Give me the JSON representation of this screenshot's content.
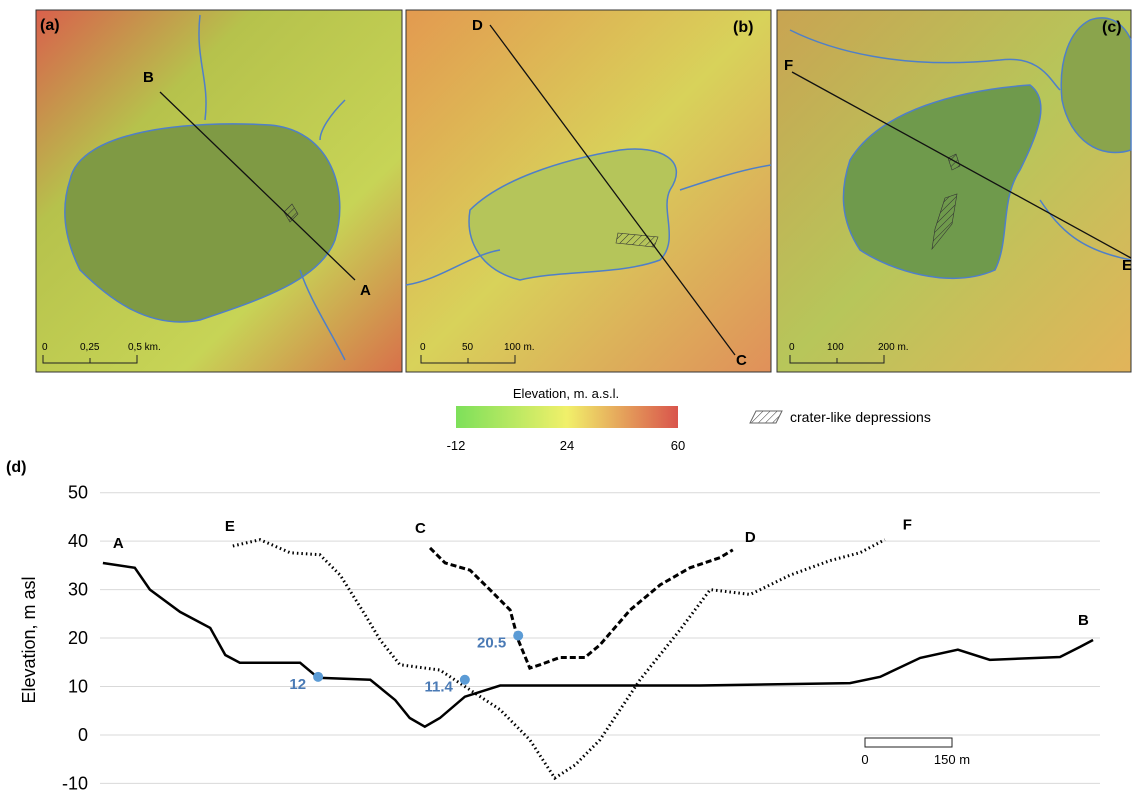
{
  "maps": [
    {
      "label": "(a)",
      "line_start": "B",
      "line_end": "A",
      "scale": [
        "0",
        "0,25",
        "0,5 km."
      ]
    },
    {
      "label": "(b)",
      "line_start": "D",
      "line_end": "C",
      "scale": [
        "0",
        "50",
        "100 m."
      ]
    },
    {
      "label": "(c)",
      "line_start": "F",
      "line_end": "E",
      "scale": [
        "0",
        "100",
        "200 m."
      ]
    }
  ],
  "colorbar": {
    "title": "Elevation, m. a.s.l.",
    "range": [
      -12,
      60
    ],
    "ticks": [
      -12,
      24,
      60
    ],
    "colors": [
      "#7de05a",
      "#f1f06a",
      "#d9544c"
    ]
  },
  "hatch_legend": "crater-like depressions",
  "chart_data": {
    "type": "line",
    "panel_label": "(d)",
    "y_label": "Elevation, m asl",
    "ylim": [
      -11.5,
      52
    ],
    "yticks": [
      -10,
      0,
      10,
      20,
      30,
      40,
      50
    ],
    "grid": true,
    "xlim": [
      0,
      1724
    ],
    "series": [
      {
        "end_labels": [
          "A",
          "B"
        ],
        "color": "#000000",
        "style": "solid",
        "x": [
          5,
          60,
          86,
          138,
          190,
          216,
          241,
          345,
          376,
          466,
          509,
          534,
          560,
          586,
          629,
          690,
          862,
          1034,
          1293,
          1345,
          1414,
          1479,
          1534,
          1655,
          1690,
          1712
        ],
        "values": [
          35.5,
          34.5,
          30,
          25.4,
          22.1,
          16.5,
          14.9,
          14.9,
          11.8,
          11.4,
          7.2,
          3.5,
          1.7,
          3.5,
          7.9,
          10.2,
          10.2,
          10.2,
          10.7,
          12,
          15.9,
          17.6,
          15.5,
          16.1,
          18.2,
          19.6
        ]
      },
      {
        "end_labels": [
          "E",
          "F"
        ],
        "color": "#000000",
        "style": "dotted",
        "x": [
          229,
          276,
          328,
          379,
          414,
          457,
          483,
          517,
          586,
          638,
          690,
          741,
          784,
          819,
          862,
          931,
          1000,
          1052,
          1121,
          1190,
          1259,
          1310,
          1353
        ],
        "values": [
          39,
          40.3,
          37.6,
          37.2,
          33,
          24.8,
          19.6,
          14.5,
          13.4,
          9.3,
          5.2,
          -1,
          -8.9,
          -6.2,
          -1,
          11.4,
          21.7,
          30,
          29,
          33,
          36,
          37.6,
          40.3
        ]
      },
      {
        "end_labels": [
          "C",
          "D"
        ],
        "color": "#000000",
        "style": "dashed",
        "x": [
          569,
          595,
          638,
          672,
          707,
          721,
          741,
          759,
          793,
          836,
          862,
          914,
          966,
          1017,
          1069,
          1091
        ],
        "values": [
          38.6,
          35.5,
          34,
          30,
          25.8,
          19.6,
          13.8,
          14.5,
          16,
          16,
          18.6,
          25.8,
          31,
          34.5,
          36.6,
          38.2
        ]
      }
    ],
    "markers": {
      "color": "#5b9bd5",
      "x": [
        376,
        629,
        721
      ],
      "values": [
        12,
        11.4,
        20.5
      ]
    },
    "scale_bar": {
      "start": "0",
      "value": 150,
      "label": "150 m"
    }
  }
}
